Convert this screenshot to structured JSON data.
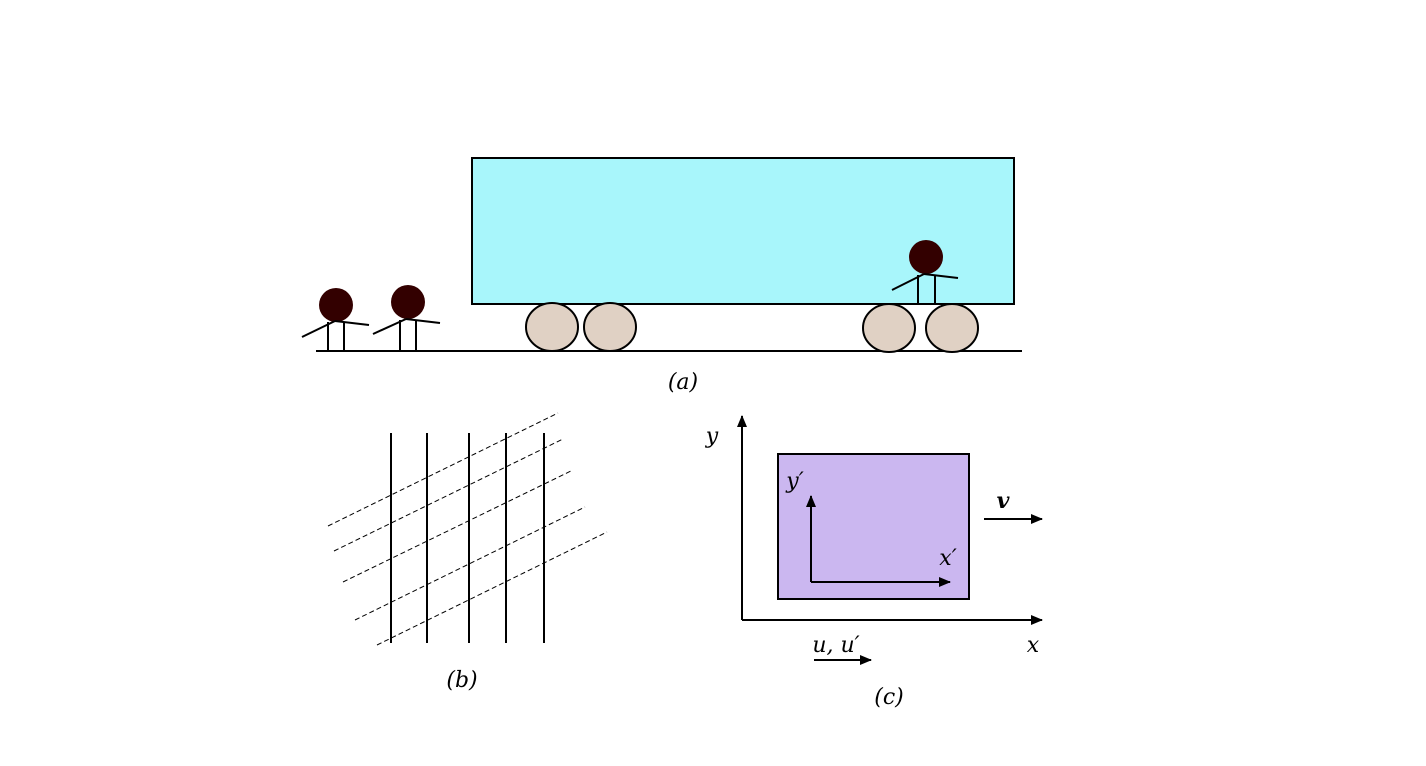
{
  "colors": {
    "car_fill": "#a8f6fb",
    "wheel_fill": "#e0d1c4",
    "head_fill": "#330000",
    "frame_fill": "#cbb7f0",
    "ink": "#000000"
  },
  "panel_a": {
    "caption": "(a)"
  },
  "panel_b": {
    "caption": "(b)"
  },
  "panel_c": {
    "caption": "(c)",
    "axis_x": "x",
    "axis_y": "y",
    "axis_x_prime": "x′",
    "axis_y_prime": "y′",
    "velocity": "v",
    "speed_label": "u, u′"
  }
}
